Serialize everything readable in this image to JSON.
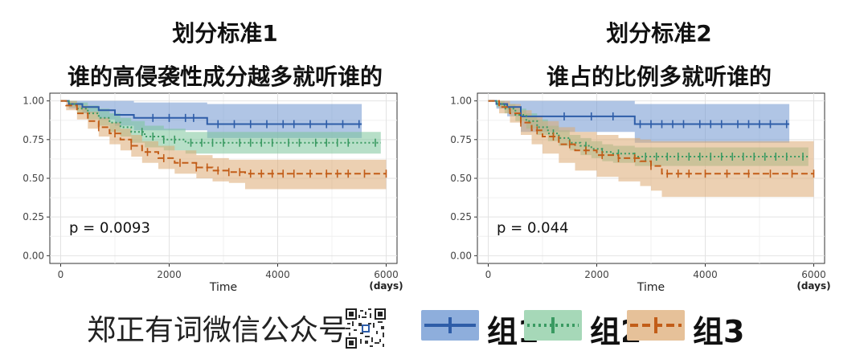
{
  "titles": {
    "left_line1": "划分标准1",
    "left_line2": "谁的高侵袭性成分越多就听谁的",
    "right_line1": "划分标准2",
    "right_line2": "谁占的比例多就听谁的"
  },
  "watermark": {
    "text": "郑正有词微信公众号"
  },
  "legend": [
    {
      "label": "组1",
      "color": "#2e5da8",
      "fill": "#6f95cf",
      "dash": "solid"
    },
    {
      "label": "组2",
      "color": "#3a9a62",
      "fill": "#7cc49a",
      "dash": "dotted"
    },
    {
      "label": "组3",
      "color": "#c25d18",
      "fill": "#dcaa72",
      "dash": "dashed"
    }
  ],
  "chart_data": [
    {
      "type": "line",
      "subtype": "kaplan-meier",
      "title": "划分标准1",
      "xlabel": "Time",
      "xunit": "(days)",
      "ylabel": "",
      "xlim": [
        -200,
        6200
      ],
      "ylim": [
        -0.05,
        1.05
      ],
      "xticks": [
        0,
        2000,
        4000,
        6000
      ],
      "yticks": [
        0.0,
        0.25,
        0.5,
        0.75,
        1.0
      ],
      "ytick_labels": [
        "0.00",
        "0.25",
        "0.50",
        "0.75",
        "1.00"
      ],
      "grid": true,
      "pvalue": "p = 0.0093",
      "series": [
        {
          "name": "组1",
          "color": "#2e5da8",
          "fill": "#6f95cf",
          "dash": "solid",
          "x": [
            0,
            150,
            400,
            700,
            1000,
            1350,
            2700,
            5550
          ],
          "y": [
            1.0,
            0.98,
            0.96,
            0.94,
            0.91,
            0.89,
            0.85,
            0.85
          ],
          "lower": [
            1.0,
            0.95,
            0.92,
            0.88,
            0.84,
            0.81,
            0.76,
            0.76
          ],
          "upper": [
            1.0,
            1.0,
            1.0,
            1.0,
            1.0,
            0.99,
            0.98,
            0.98
          ],
          "censor": [
            1700,
            2000,
            2300,
            2450,
            2900,
            3200,
            3500,
            3800,
            4100,
            4300,
            4600,
            4900,
            5200,
            5500
          ]
        },
        {
          "name": "组2",
          "color": "#3a9a62",
          "fill": "#7cc49a",
          "dash": "dotted",
          "x": [
            0,
            150,
            300,
            500,
            700,
            900,
            1100,
            1300,
            1550,
            1900,
            2300,
            5900
          ],
          "y": [
            1.0,
            0.98,
            0.95,
            0.92,
            0.89,
            0.86,
            0.83,
            0.8,
            0.77,
            0.75,
            0.73,
            0.73
          ],
          "lower": [
            1.0,
            0.96,
            0.92,
            0.88,
            0.84,
            0.8,
            0.77,
            0.73,
            0.7,
            0.68,
            0.66,
            0.66
          ],
          "upper": [
            1.0,
            1.0,
            0.99,
            0.97,
            0.95,
            0.92,
            0.89,
            0.87,
            0.84,
            0.82,
            0.8,
            0.8
          ],
          "censor": [
            1500,
            1700,
            1900,
            2100,
            2400,
            2600,
            2800,
            3000,
            3300,
            3500,
            3700,
            3900,
            4200,
            4400,
            4700,
            4900,
            5100,
            5300,
            5800
          ]
        },
        {
          "name": "组3",
          "color": "#c25d18",
          "fill": "#dcaa72",
          "dash": "dashed",
          "x": [
            0,
            100,
            300,
            500,
            700,
            900,
            1100,
            1300,
            1500,
            1800,
            2100,
            2500,
            2800,
            3100,
            3400,
            6000
          ],
          "y": [
            1.0,
            0.97,
            0.92,
            0.87,
            0.83,
            0.79,
            0.75,
            0.71,
            0.67,
            0.63,
            0.6,
            0.57,
            0.55,
            0.54,
            0.53,
            0.53
          ],
          "lower": [
            1.0,
            0.94,
            0.88,
            0.82,
            0.77,
            0.72,
            0.68,
            0.64,
            0.6,
            0.56,
            0.53,
            0.5,
            0.48,
            0.47,
            0.43,
            0.43
          ],
          "upper": [
            1.0,
            1.0,
            0.97,
            0.93,
            0.89,
            0.86,
            0.82,
            0.78,
            0.74,
            0.71,
            0.68,
            0.65,
            0.63,
            0.62,
            0.62,
            0.62
          ],
          "censor": [
            700,
            1000,
            1300,
            1600,
            1900,
            2200,
            2500,
            2700,
            2900,
            3100,
            3300,
            3500,
            3700,
            3900,
            4100,
            4300,
            4600,
            4900,
            5100,
            5300,
            5600,
            6000
          ]
        }
      ]
    },
    {
      "type": "line",
      "subtype": "kaplan-meier",
      "title": "划分标准2",
      "xlabel": "Time",
      "xunit": "(days)",
      "ylabel": "",
      "xlim": [
        -200,
        6200
      ],
      "ylim": [
        -0.05,
        1.05
      ],
      "xticks": [
        0,
        2000,
        4000,
        6000
      ],
      "yticks": [
        0.0,
        0.25,
        0.5,
        0.75,
        1.0
      ],
      "ytick_labels": [
        "0.00",
        "0.25",
        "0.50",
        "0.75",
        "1.00"
      ],
      "grid": true,
      "pvalue": "p = 0.044",
      "series": [
        {
          "name": "组1",
          "color": "#2e5da8",
          "fill": "#6f95cf",
          "dash": "solid",
          "x": [
            0,
            150,
            350,
            600,
            2700,
            5550
          ],
          "y": [
            1.0,
            0.98,
            0.96,
            0.9,
            0.85,
            0.85
          ],
          "lower": [
            1.0,
            0.95,
            0.9,
            0.8,
            0.73,
            0.73
          ],
          "upper": [
            1.0,
            1.0,
            1.0,
            1.0,
            0.98,
            0.98
          ],
          "censor": [
            1400,
            1900,
            2300,
            2800,
            3000,
            3200,
            3400,
            3600,
            3900,
            4100,
            4300,
            4600,
            4800,
            5000,
            5200,
            5500
          ]
        },
        {
          "name": "组2",
          "color": "#3a9a62",
          "fill": "#7cc49a",
          "dash": "dotted",
          "x": [
            0,
            150,
            300,
            500,
            700,
            900,
            1100,
            1300,
            1500,
            1700,
            1900,
            2100,
            2300,
            2700,
            5900
          ],
          "y": [
            1.0,
            0.98,
            0.95,
            0.91,
            0.87,
            0.83,
            0.79,
            0.76,
            0.73,
            0.71,
            0.69,
            0.67,
            0.66,
            0.64,
            0.64
          ],
          "lower": [
            1.0,
            0.96,
            0.92,
            0.87,
            0.82,
            0.78,
            0.74,
            0.71,
            0.68,
            0.65,
            0.63,
            0.61,
            0.6,
            0.58,
            0.58
          ],
          "upper": [
            1.0,
            1.0,
            0.98,
            0.95,
            0.92,
            0.88,
            0.84,
            0.81,
            0.78,
            0.76,
            0.74,
            0.72,
            0.71,
            0.7,
            0.7
          ],
          "censor": [
            1200,
            1500,
            1800,
            2100,
            2400,
            2700,
            2900,
            3100,
            3300,
            3500,
            3700,
            3900,
            4100,
            4300,
            4500,
            4700,
            4900,
            5100,
            5300,
            5500,
            5800
          ]
        },
        {
          "name": "组3",
          "color": "#c25d18",
          "fill": "#dcaa72",
          "dash": "dashed",
          "x": [
            0,
            200,
            400,
            600,
            800,
            1000,
            1300,
            1600,
            2000,
            2400,
            2800,
            3000,
            3200,
            6000
          ],
          "y": [
            1.0,
            0.96,
            0.92,
            0.86,
            0.81,
            0.77,
            0.72,
            0.68,
            0.65,
            0.63,
            0.61,
            0.58,
            0.53,
            0.53
          ],
          "lower": [
            1.0,
            0.92,
            0.86,
            0.78,
            0.72,
            0.66,
            0.6,
            0.55,
            0.51,
            0.48,
            0.45,
            0.42,
            0.38,
            0.38
          ],
          "upper": [
            1.0,
            1.0,
            0.98,
            0.94,
            0.9,
            0.87,
            0.83,
            0.8,
            0.78,
            0.76,
            0.75,
            0.74,
            0.74,
            0.74
          ],
          "censor": [
            600,
            900,
            1200,
            1500,
            1800,
            2100,
            2400,
            2700,
            3000,
            3300,
            3500,
            3700,
            4000,
            4400,
            4800,
            5200,
            5600,
            6000
          ]
        }
      ]
    }
  ]
}
